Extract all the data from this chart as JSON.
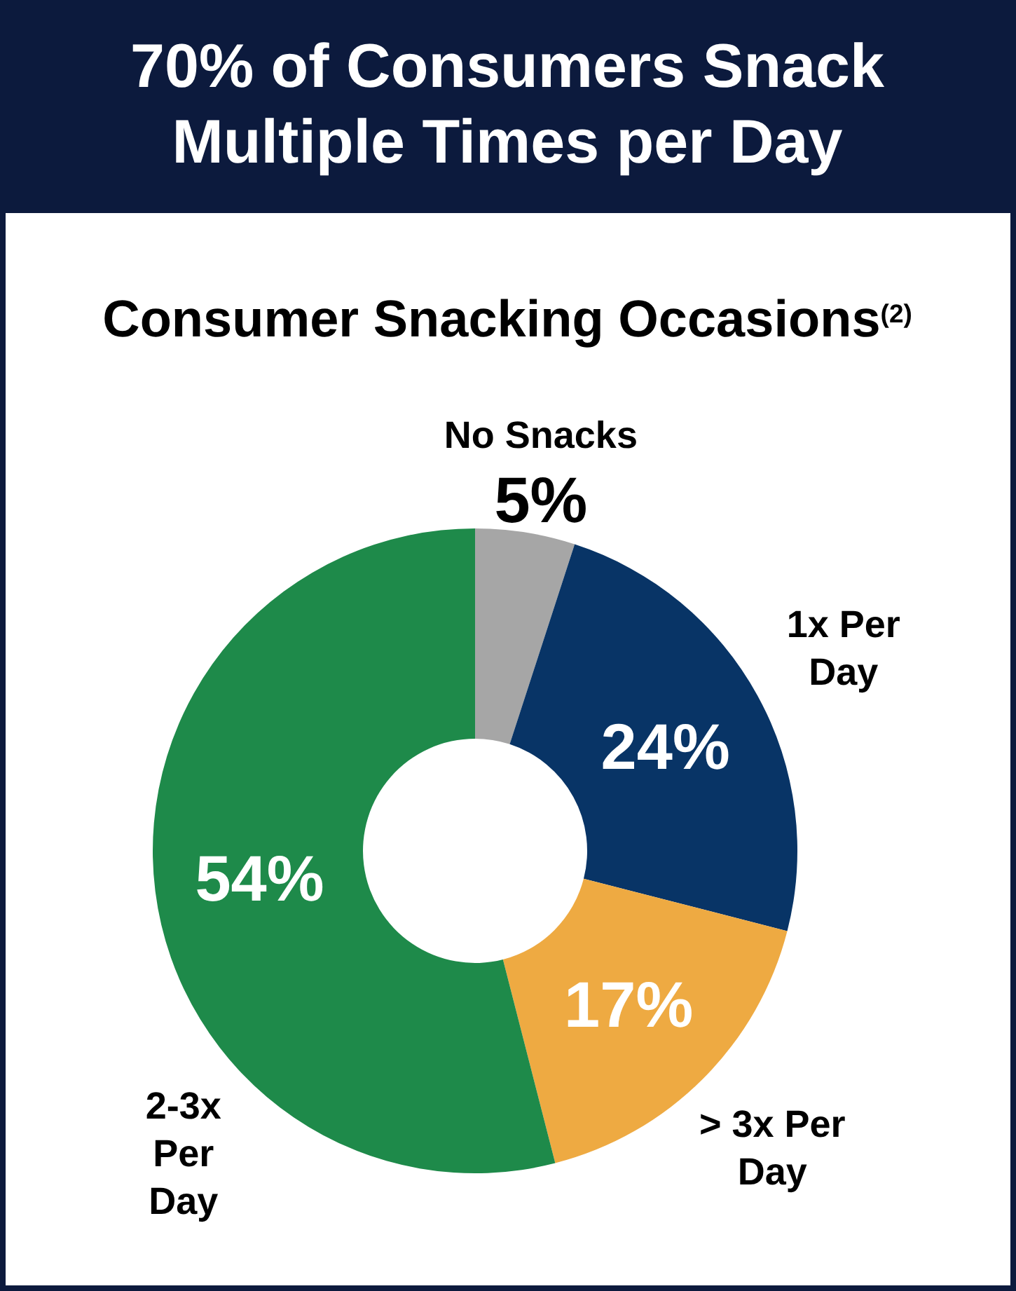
{
  "chart_data": {
    "type": "donut",
    "title": "70% of Consumers Snack Multiple Times per Day",
    "subtitle": "Consumer Snacking Occasions$^{(2)}$",
    "categories": [
      "No Snacks",
      "1x Per Day",
      "> 3x Per Day",
      "2-3x Per Day"
    ],
    "values": [
      5,
      24,
      17,
      54
    ],
    "colors": [
      "#a6a6a6",
      "#083466",
      "#eeaa42",
      "#1e8a4a"
    ],
    "value_labels": [
      "5%",
      "24%",
      "17%",
      "54%"
    ]
  }
}
